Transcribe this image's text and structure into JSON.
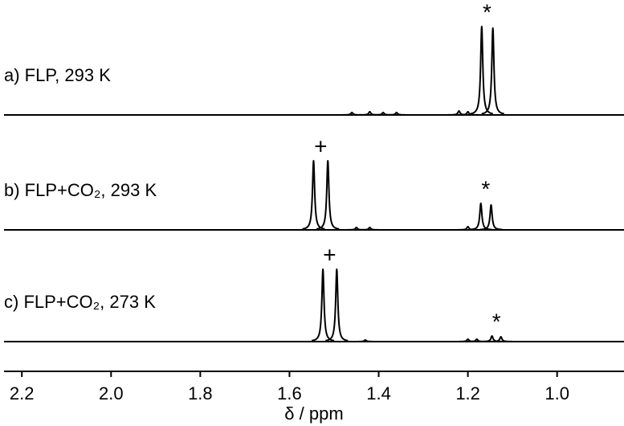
{
  "chart_data": {
    "type": "nmr",
    "xlabel": "δ / ppm",
    "xlim": [
      2.24,
      0.85
    ],
    "xticks": [
      2.2,
      {
        "value": 2.0,
        "label": "2.0"
      },
      1.8,
      1.6,
      1.4,
      1.2,
      {
        "value": 1.0,
        "label": "1.0"
      }
    ],
    "ylim": [
      0,
      120
    ],
    "color": "#000000",
    "series": [
      {
        "name": "a) FLP, 293 K",
        "x": [
          1.46,
          1.42,
          1.39,
          1.36,
          1.22,
          1.2,
          1.169,
          1.144
        ],
        "values": [
          3,
          4,
          3,
          3,
          5,
          4,
          110,
          108
        ],
        "annotations": [
          {
            "text": "*",
            "x": 1.157
          }
        ]
      },
      {
        "name": "b) FLP+CO₂, 293 K",
        "x": [
          1.546,
          1.514,
          1.45,
          1.42,
          1.2,
          1.171,
          1.148
        ],
        "values": [
          86,
          86,
          3,
          3,
          4,
          33,
          31
        ],
        "annotations": [
          {
            "text": "+",
            "x": 1.53
          },
          {
            "text": "*",
            "x": 1.16
          }
        ]
      },
      {
        "name": "c) FLP+CO₂, 273 K",
        "x": [
          1.525,
          1.494,
          1.43,
          1.2,
          1.18,
          1.146,
          1.126
        ],
        "values": [
          90,
          90,
          2,
          3,
          3,
          7,
          6
        ],
        "annotations": [
          {
            "text": "+",
            "x": 1.51
          },
          {
            "text": "*",
            "x": 1.136
          }
        ]
      }
    ]
  }
}
